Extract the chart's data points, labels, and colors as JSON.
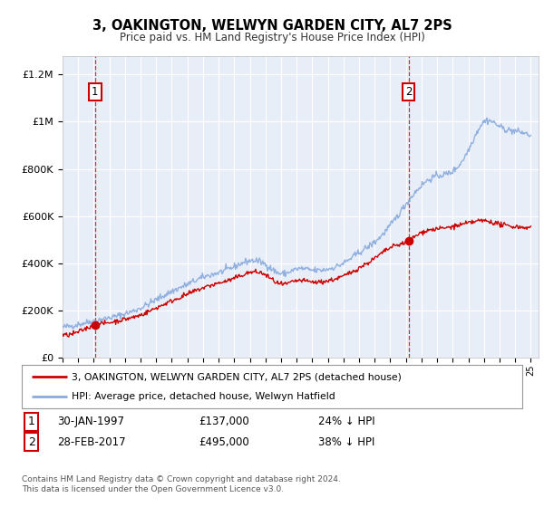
{
  "title": "3, OAKINGTON, WELWYN GARDEN CITY, AL7 2PS",
  "subtitle": "Price paid vs. HM Land Registry's House Price Index (HPI)",
  "ylabel_ticks": [
    0,
    200000,
    400000,
    600000,
    800000,
    1000000,
    1200000
  ],
  "ylabel_labels": [
    "£0",
    "£200K",
    "£400K",
    "£600K",
    "£800K",
    "£1M",
    "£1.2M"
  ],
  "ylim": [
    0,
    1280000
  ],
  "xlim_start": 1995.0,
  "xlim_end": 2025.5,
  "sale1_x": 1997.08,
  "sale1_y": 137000,
  "sale1_label": "1",
  "sale2_x": 2017.17,
  "sale2_y": 495000,
  "sale2_label": "2",
  "legend_line1": "3, OAKINGTON, WELWYN GARDEN CITY, AL7 2PS (detached house)",
  "legend_line2": "HPI: Average price, detached house, Welwyn Hatfield",
  "footnote": "Contains HM Land Registry data © Crown copyright and database right 2024.\nThis data is licensed under the Open Government Licence v3.0.",
  "red_color": "#cc0000",
  "blue_color": "#88aadd",
  "bg_color": "#e8eef8",
  "grid_color": "#ffffff",
  "fig_bg": "#ffffff",
  "hpi_key_x": [
    1995,
    1996,
    1997,
    1998,
    1999,
    2000,
    2001,
    2002,
    2003,
    2004,
    2005,
    2006,
    2007,
    2008,
    2009,
    2010,
    2011,
    2012,
    2013,
    2014,
    2015,
    2016,
    2017,
    2018,
    2019,
    2020,
    2021,
    2022,
    2023,
    2024,
    2025
  ],
  "hpi_key_y": [
    128000,
    140000,
    155000,
    168000,
    185000,
    210000,
    245000,
    280000,
    310000,
    340000,
    360000,
    385000,
    410000,
    395000,
    355000,
    375000,
    370000,
    375000,
    400000,
    445000,
    490000,
    560000,
    650000,
    730000,
    770000,
    790000,
    880000,
    1000000,
    980000,
    960000,
    940000
  ],
  "red_key_x": [
    1995,
    1996,
    1997.08,
    1998,
    1999,
    2000,
    2001,
    2002,
    2003,
    2004,
    2005,
    2006,
    2007,
    2008,
    2009,
    2010,
    2011,
    2012,
    2013,
    2014,
    2015,
    2016,
    2017.17,
    2018,
    2019,
    2020,
    2021,
    2022,
    2023,
    2024,
    2025
  ],
  "red_key_y": [
    95000,
    108000,
    137000,
    148000,
    162000,
    180000,
    210000,
    240000,
    268000,
    295000,
    315000,
    335000,
    360000,
    350000,
    310000,
    325000,
    320000,
    325000,
    345000,
    380000,
    420000,
    465000,
    495000,
    530000,
    545000,
    555000,
    570000,
    580000,
    565000,
    555000,
    550000
  ]
}
